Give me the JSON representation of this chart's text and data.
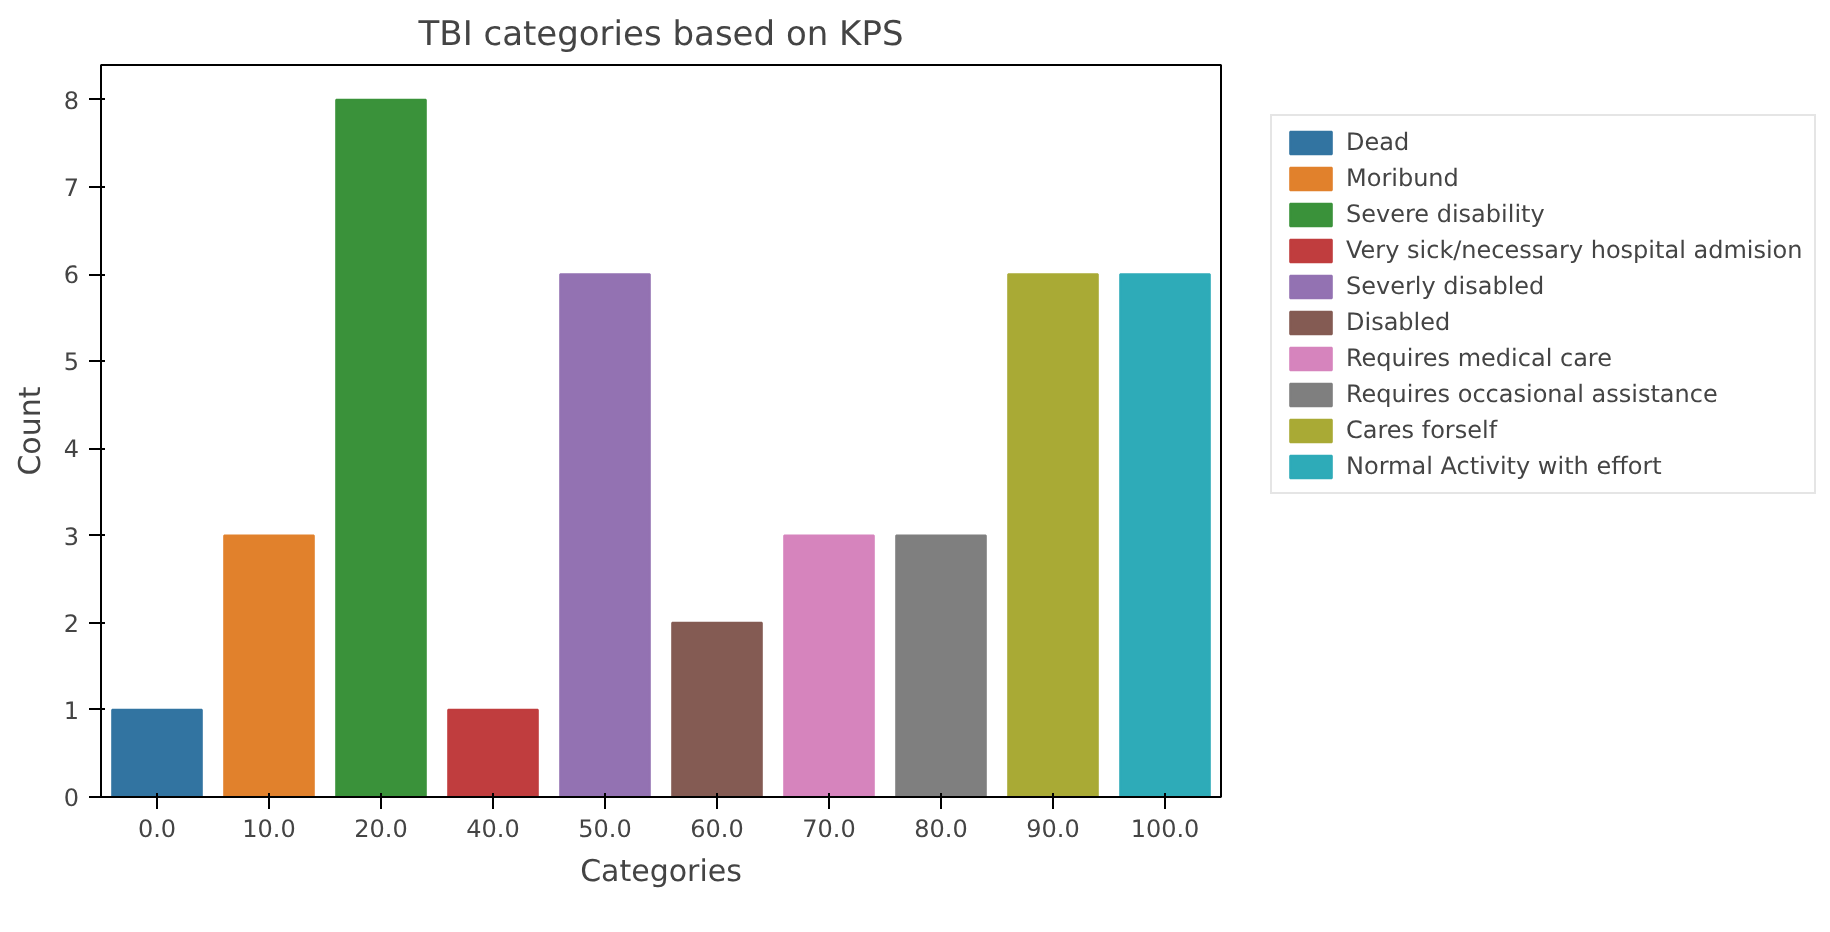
{
  "chart_data": {
    "type": "bar",
    "title": "TBI categories based on KPS",
    "xlabel": "Categories",
    "ylabel": "Count",
    "categories": [
      "0.0",
      "10.0",
      "20.0",
      "40.0",
      "50.0",
      "60.0",
      "70.0",
      "80.0",
      "90.0",
      "100.0"
    ],
    "series": [
      {
        "name": "Dead",
        "color": "#3274a1",
        "values": [
          1,
          null,
          null,
          null,
          null,
          null,
          null,
          null,
          null,
          null
        ]
      },
      {
        "name": "Moribund",
        "color": "#e1812c",
        "values": [
          null,
          3,
          null,
          null,
          null,
          null,
          null,
          null,
          null,
          null
        ]
      },
      {
        "name": "Severe disability",
        "color": "#3a923a",
        "values": [
          null,
          null,
          8,
          null,
          null,
          null,
          null,
          null,
          null,
          null
        ]
      },
      {
        "name": "Very sick/necessary hospital admision",
        "color": "#c03d3e",
        "values": [
          null,
          null,
          null,
          1,
          null,
          null,
          null,
          null,
          null,
          null
        ]
      },
      {
        "name": "Severly disabled",
        "color": "#9372b2",
        "values": [
          null,
          null,
          null,
          null,
          6,
          null,
          null,
          null,
          null,
          null
        ]
      },
      {
        "name": "Disabled",
        "color": "#845b53",
        "values": [
          null,
          null,
          null,
          null,
          null,
          2,
          null,
          null,
          null,
          null
        ]
      },
      {
        "name": "Requires medical care",
        "color": "#d684bd",
        "values": [
          null,
          null,
          null,
          null,
          null,
          null,
          3,
          null,
          null,
          null
        ]
      },
      {
        "name": "Requires occasional assistance",
        "color": "#7f7f7f",
        "values": [
          null,
          null,
          null,
          null,
          null,
          null,
          null,
          3,
          null,
          null
        ]
      },
      {
        "name": "Cares forself",
        "color": "#a9aa35",
        "values": [
          null,
          null,
          null,
          null,
          null,
          null,
          null,
          null,
          6,
          null
        ]
      },
      {
        "name": "Normal Activity with effort",
        "color": "#2eabb8",
        "values": [
          null,
          null,
          null,
          null,
          null,
          null,
          null,
          null,
          null,
          6
        ]
      }
    ],
    "ylim": [
      0,
      8.4
    ],
    "yticks": [
      0,
      1,
      2,
      3,
      4,
      5,
      6,
      7,
      8
    ],
    "grid": false,
    "legend": "right"
  }
}
